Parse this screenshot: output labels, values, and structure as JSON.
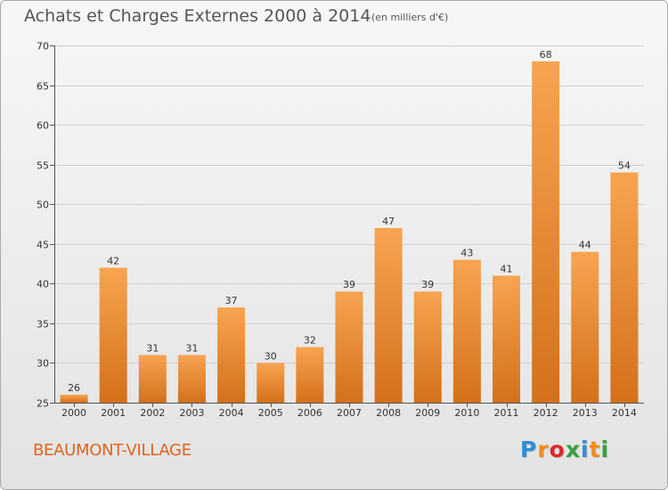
{
  "title": "Achats et Charges Externes 2000 à 2014",
  "subtitle": "(en milliers d'€)",
  "city": "BEAUMONT-VILLAGE",
  "logo": {
    "letters": [
      "P",
      "r",
      "o",
      "x",
      "i",
      "t",
      "i"
    ],
    "colors": [
      "#2a8fd8",
      "#f28c1e",
      "#e02828",
      "#3aa03a",
      "#2a8fd8",
      "#f28c1e",
      "#3aa03a"
    ]
  },
  "colors": {
    "bar_top": "#f7a451",
    "bar_bottom": "#d4701a",
    "grid": "#d0d0d0",
    "axis": "#555555",
    "text": "#333333"
  },
  "chart_data": {
    "type": "bar",
    "categories": [
      "2000",
      "2001",
      "2002",
      "2003",
      "2004",
      "2005",
      "2006",
      "2007",
      "2008",
      "2009",
      "2010",
      "2011",
      "2012",
      "2013",
      "2014"
    ],
    "values": [
      26,
      42,
      31,
      31,
      37,
      30,
      32,
      39,
      47,
      39,
      43,
      41,
      68,
      44,
      54
    ],
    "ylim": [
      25,
      70
    ],
    "yticks": [
      25,
      30,
      35,
      40,
      45,
      50,
      55,
      60,
      65,
      70
    ],
    "grid": true,
    "data_labels": true
  }
}
